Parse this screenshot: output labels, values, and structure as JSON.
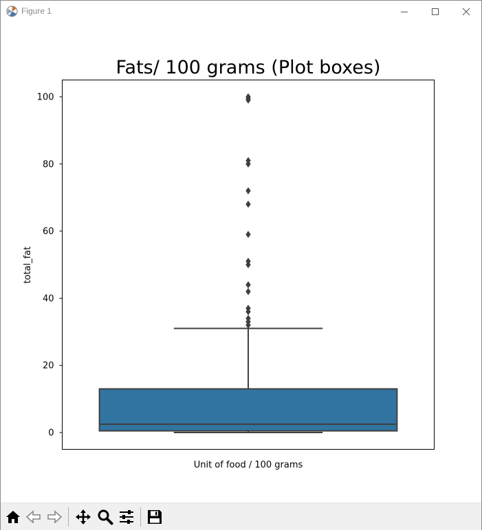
{
  "window": {
    "title": "Figure 1",
    "icons": [
      "matplotlib-icon",
      "minimize-icon",
      "maximize-icon",
      "close-icon"
    ]
  },
  "toolbar": {
    "icons": [
      "home-icon",
      "back-arrow-icon",
      "forward-arrow-icon",
      "pan-icon",
      "zoom-icon",
      "configure-subplots-icon",
      "save-icon"
    ]
  },
  "chart_data": {
    "type": "box",
    "title": "Fats/ 100 grams (Plot boxes)",
    "xlabel": "Unit of food / 100 grams",
    "ylabel": "total_fat",
    "categories": [
      ""
    ],
    "ylim": [
      -5,
      105
    ],
    "yticks": [
      0,
      20,
      40,
      60,
      80,
      100
    ],
    "ytick_labels": [
      "0",
      "20",
      "40",
      "60",
      "80",
      "100"
    ],
    "grid": false,
    "box": {
      "q1": 0.5,
      "median": 2.5,
      "q3": 13,
      "whisker_low": 0,
      "whisker_high": 31,
      "outliers": [
        32,
        33,
        34,
        36,
        37,
        42,
        44,
        50,
        51,
        59,
        68,
        72,
        80,
        81,
        99,
        99.5,
        100
      ]
    },
    "colors": {
      "box_fill": "#3274a1",
      "line": "#3f3f3f",
      "frame": "#000000"
    }
  }
}
